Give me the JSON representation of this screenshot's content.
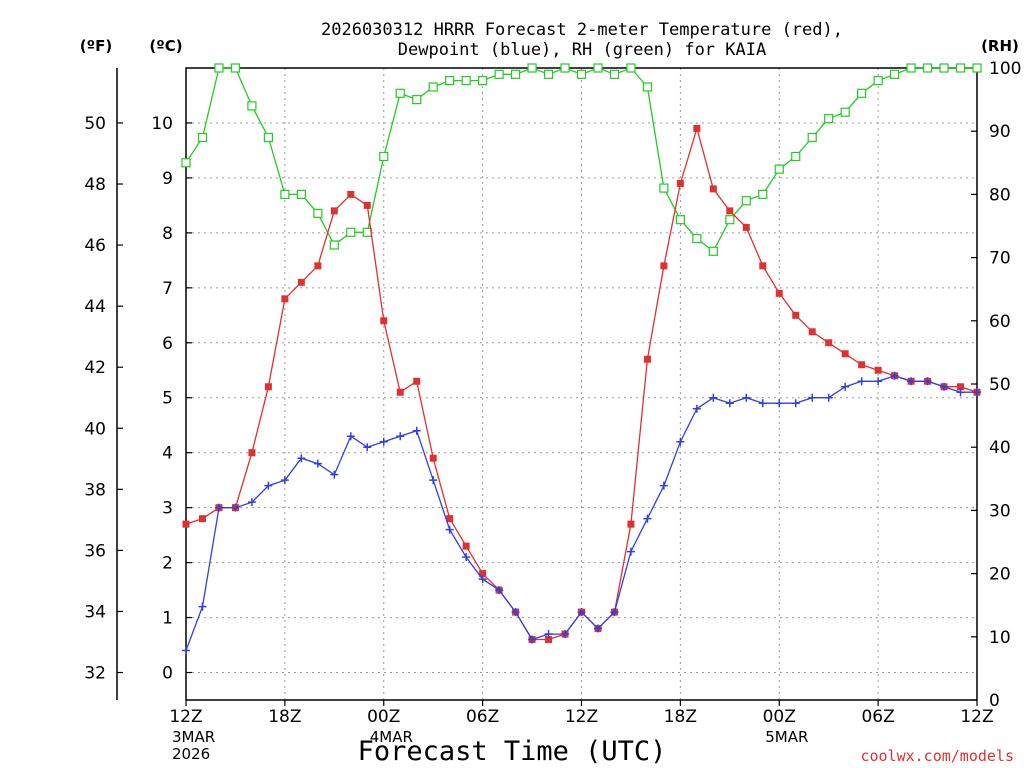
{
  "chart_data": {
    "type": "line",
    "title": {
      "line1": "2026030312 HRRR Forecast 2-meter Temperature (red),",
      "line2": "Dewpoint (blue), RH (green) for KAIA"
    },
    "xlabel": "Forecast Time (UTC)",
    "credit": "coolwx.com/models",
    "unit_labels": {
      "fahrenheit": "(ºF)",
      "celsius": "(ºC)",
      "rh": "(RH)"
    },
    "x_ticks": [
      {
        "hour": 0,
        "label": "12Z"
      },
      {
        "hour": 6,
        "label": "18Z"
      },
      {
        "hour": 12,
        "label": "00Z"
      },
      {
        "hour": 18,
        "label": "06Z"
      },
      {
        "hour": 24,
        "label": "12Z"
      },
      {
        "hour": 30,
        "label": "18Z"
      },
      {
        "hour": 36,
        "label": "00Z"
      },
      {
        "hour": 42,
        "label": "06Z"
      },
      {
        "hour": 48,
        "label": "12Z"
      }
    ],
    "date_labels": [
      {
        "hour": 0,
        "lines": [
          "3MAR",
          "2026"
        ]
      },
      {
        "hour": 12,
        "lines": [
          "4MAR"
        ]
      },
      {
        "hour": 36,
        "lines": [
          "5MAR"
        ]
      }
    ],
    "x_range_hours": [
      0,
      48
    ],
    "y_left_celsius": {
      "range": [
        -0.5,
        11
      ],
      "ticks": [
        0,
        1,
        2,
        3,
        4,
        5,
        6,
        7,
        8,
        9,
        10
      ]
    },
    "y_left_fahrenheit": {
      "range": [
        31.1,
        51.8
      ],
      "ticks": [
        32,
        34,
        36,
        38,
        40,
        42,
        44,
        46,
        48,
        50
      ]
    },
    "y_right_rh": {
      "range": [
        0,
        100
      ],
      "ticks": [
        0,
        10,
        20,
        30,
        40,
        50,
        60,
        70,
        80,
        90,
        100
      ]
    },
    "grid": true,
    "series": [
      {
        "key": "temperature",
        "unit": "C",
        "color": "#e03030",
        "marker": "filled-square",
        "x": [
          0,
          1,
          2,
          3,
          4,
          5,
          6,
          7,
          8,
          9,
          10,
          11,
          12,
          13,
          14,
          15,
          16,
          17,
          18,
          19,
          20,
          21,
          22,
          23,
          24,
          25,
          26,
          27,
          28,
          29,
          30,
          31,
          32,
          33,
          34,
          35,
          36,
          37,
          38,
          39,
          40,
          41,
          42,
          43,
          44,
          45,
          46,
          47,
          48
        ],
        "values": [
          2.7,
          2.8,
          3.0,
          3.0,
          4.0,
          5.2,
          6.8,
          7.1,
          7.4,
          8.4,
          8.7,
          8.5,
          6.4,
          5.1,
          5.3,
          3.9,
          2.8,
          2.3,
          1.8,
          1.5,
          1.1,
          0.6,
          0.6,
          0.7,
          1.1,
          0.8,
          1.1,
          2.7,
          5.7,
          7.4,
          8.9,
          9.9,
          8.8,
          8.4,
          8.1,
          7.4,
          6.9,
          6.5,
          6.2,
          6.0,
          5.8,
          5.6,
          5.5,
          5.4,
          5.3,
          5.3,
          5.2,
          5.2,
          5.1
        ]
      },
      {
        "key": "dewpoint",
        "unit": "C",
        "color": "#3040e0",
        "marker": "plus",
        "x": [
          0,
          1,
          2,
          3,
          4,
          5,
          6,
          7,
          8,
          9,
          10,
          11,
          12,
          13,
          14,
          15,
          16,
          17,
          18,
          19,
          20,
          21,
          22,
          23,
          24,
          25,
          26,
          27,
          28,
          29,
          30,
          31,
          32,
          33,
          34,
          35,
          36,
          37,
          38,
          39,
          40,
          41,
          42,
          43,
          44,
          45,
          46,
          47,
          48
        ],
        "values": [
          0.4,
          1.2,
          3.0,
          3.0,
          3.1,
          3.4,
          3.5,
          3.9,
          3.8,
          3.6,
          4.3,
          4.1,
          4.2,
          4.3,
          4.4,
          3.5,
          2.6,
          2.1,
          1.7,
          1.5,
          1.1,
          0.6,
          0.7,
          0.7,
          1.1,
          0.8,
          1.1,
          2.2,
          2.8,
          3.4,
          4.2,
          4.8,
          5.0,
          4.9,
          5.0,
          4.9,
          4.9,
          4.9,
          5.0,
          5.0,
          5.2,
          5.3,
          5.3,
          5.4,
          5.3,
          5.3,
          5.2,
          5.1,
          5.1
        ]
      },
      {
        "key": "rh",
        "unit": "%",
        "color": "#22cc22",
        "marker": "open-square",
        "x": [
          0,
          1,
          2,
          3,
          4,
          5,
          6,
          7,
          8,
          9,
          10,
          11,
          12,
          13,
          14,
          15,
          16,
          17,
          18,
          19,
          20,
          21,
          22,
          23,
          24,
          25,
          26,
          27,
          28,
          29,
          30,
          31,
          32,
          33,
          34,
          35,
          36,
          37,
          38,
          39,
          40,
          41,
          42,
          43,
          44,
          45,
          46,
          47,
          48
        ],
        "values": [
          85,
          89,
          100,
          100,
          94,
          89,
          80,
          80,
          77,
          72,
          74,
          74,
          86,
          96,
          95,
          97,
          98,
          98,
          98,
          99,
          99,
          100,
          99,
          100,
          99,
          100,
          99,
          100,
          97,
          81,
          76,
          73,
          71,
          76,
          79,
          80,
          84,
          86,
          89,
          92,
          93,
          96,
          98,
          99,
          100,
          100,
          100,
          100,
          100
        ]
      }
    ]
  }
}
